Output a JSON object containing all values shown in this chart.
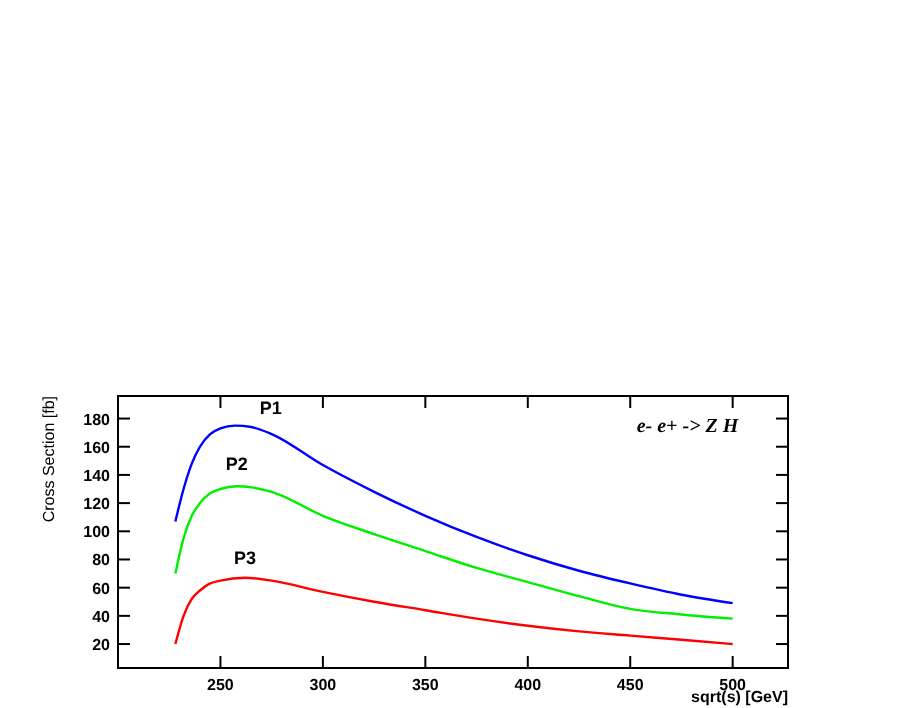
{
  "chart_data": {
    "type": "line",
    "xlabel": "sqrt(s) [GeV]",
    "ylabel": "Cross Section [fb]",
    "xlim": [
      200,
      527
    ],
    "ylim": [
      3,
      196
    ],
    "xticks": [
      250,
      300,
      350,
      400,
      450,
      500
    ],
    "yticks": [
      20,
      40,
      60,
      80,
      100,
      120,
      140,
      160,
      180
    ],
    "grid": false,
    "marker": "none",
    "line_style": "solid",
    "annotations": [
      "e- e+ -> Z H"
    ],
    "series": [
      {
        "name": "P1",
        "color": "#0000ff",
        "x": [
          228,
          232,
          236,
          240,
          245,
          250,
          257,
          265,
          275,
          300,
          325,
          350,
          375,
          400,
          425,
          450,
          475,
          500
        ],
        "values": [
          107,
          130,
          148,
          160,
          169,
          173,
          175,
          174,
          169,
          147,
          128,
          111,
          96,
          83,
          72,
          63,
          55,
          49
        ]
      },
      {
        "name": "P2",
        "color": "#00ee00",
        "x": [
          228,
          232,
          236,
          240,
          245,
          250,
          258,
          266,
          275,
          300,
          325,
          350,
          375,
          400,
          425,
          450,
          475,
          500
        ],
        "values": [
          70,
          95,
          111,
          120,
          127,
          130,
          132,
          131,
          128,
          111,
          98,
          86,
          74,
          64,
          54,
          45,
          41,
          38
        ]
      },
      {
        "name": "P3",
        "color": "#ff0000",
        "x": [
          228,
          232,
          236,
          240,
          245,
          250,
          262,
          275,
          300,
          325,
          350,
          375,
          400,
          425,
          450,
          475,
          500
        ],
        "values": [
          20,
          40,
          52,
          58,
          63,
          65,
          67,
          65,
          57,
          50,
          44,
          38,
          33,
          29,
          26,
          23,
          20
        ]
      }
    ]
  }
}
